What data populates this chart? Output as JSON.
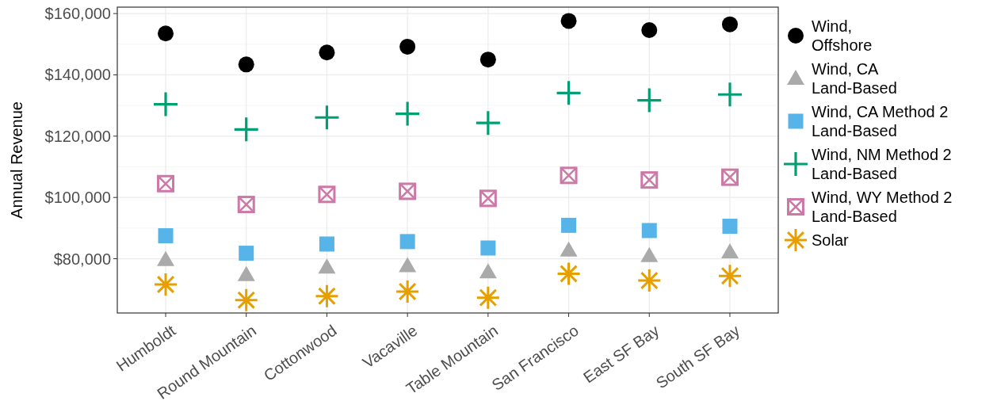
{
  "chart_data": {
    "type": "scatter",
    "ylabel": "Annual Revenue",
    "categories": [
      "Humboldt",
      "Round Mountain",
      "Cottonwood",
      "Vacaville",
      "Table Mountain",
      "San Francisco",
      "East SF Bay",
      "South SF Bay"
    ],
    "ylim": [
      62300,
      162100
    ],
    "yticks": [
      {
        "value": 80000,
        "label": "$80,000"
      },
      {
        "value": 100000,
        "label": "$100,000"
      },
      {
        "value": 120000,
        "label": "$120,000"
      },
      {
        "value": 140000,
        "label": "$140,000"
      },
      {
        "value": 160000,
        "label": "$160,000"
      }
    ],
    "grid": true,
    "legend": "right",
    "series": [
      {
        "name": "Wind,\nOffshore",
        "color": "#000000",
        "marker": "circle",
        "values": [
          153500,
          143400,
          147300,
          149200,
          145000,
          157600,
          154600,
          156500
        ]
      },
      {
        "name": "Wind, CA\nLand-Based",
        "color": "#aaaaaa",
        "marker": "triangle",
        "values": [
          79700,
          74800,
          77200,
          77700,
          75700,
          82800,
          81000,
          82200
        ]
      },
      {
        "name": "Wind, CA Method 2\nLand-Based",
        "color": "#56b4e9",
        "values": [
          87500,
          81800,
          84800,
          85600,
          83500,
          90900,
          89200,
          90600
        ]
      },
      {
        "name": "Wind, NM Method 2\nLand-Based",
        "color": "#009e73",
        "marker": "cross",
        "values": [
          130400,
          122200,
          126100,
          127300,
          124300,
          134100,
          131700,
          133600
        ]
      },
      {
        "name": "Wind, WY Method 2\nLand-Based",
        "color": "#cc79a7",
        "marker": "square",
        "values": [
          104500,
          97700,
          101000,
          102000,
          99700,
          107200,
          105700,
          106600
        ]
      },
      {
        "name": "Solar",
        "color": "#e69f00",
        "marker": "star",
        "values": [
          71600,
          66500,
          67800,
          69300,
          67300,
          75100,
          72900,
          74400
        ]
      }
    ]
  }
}
